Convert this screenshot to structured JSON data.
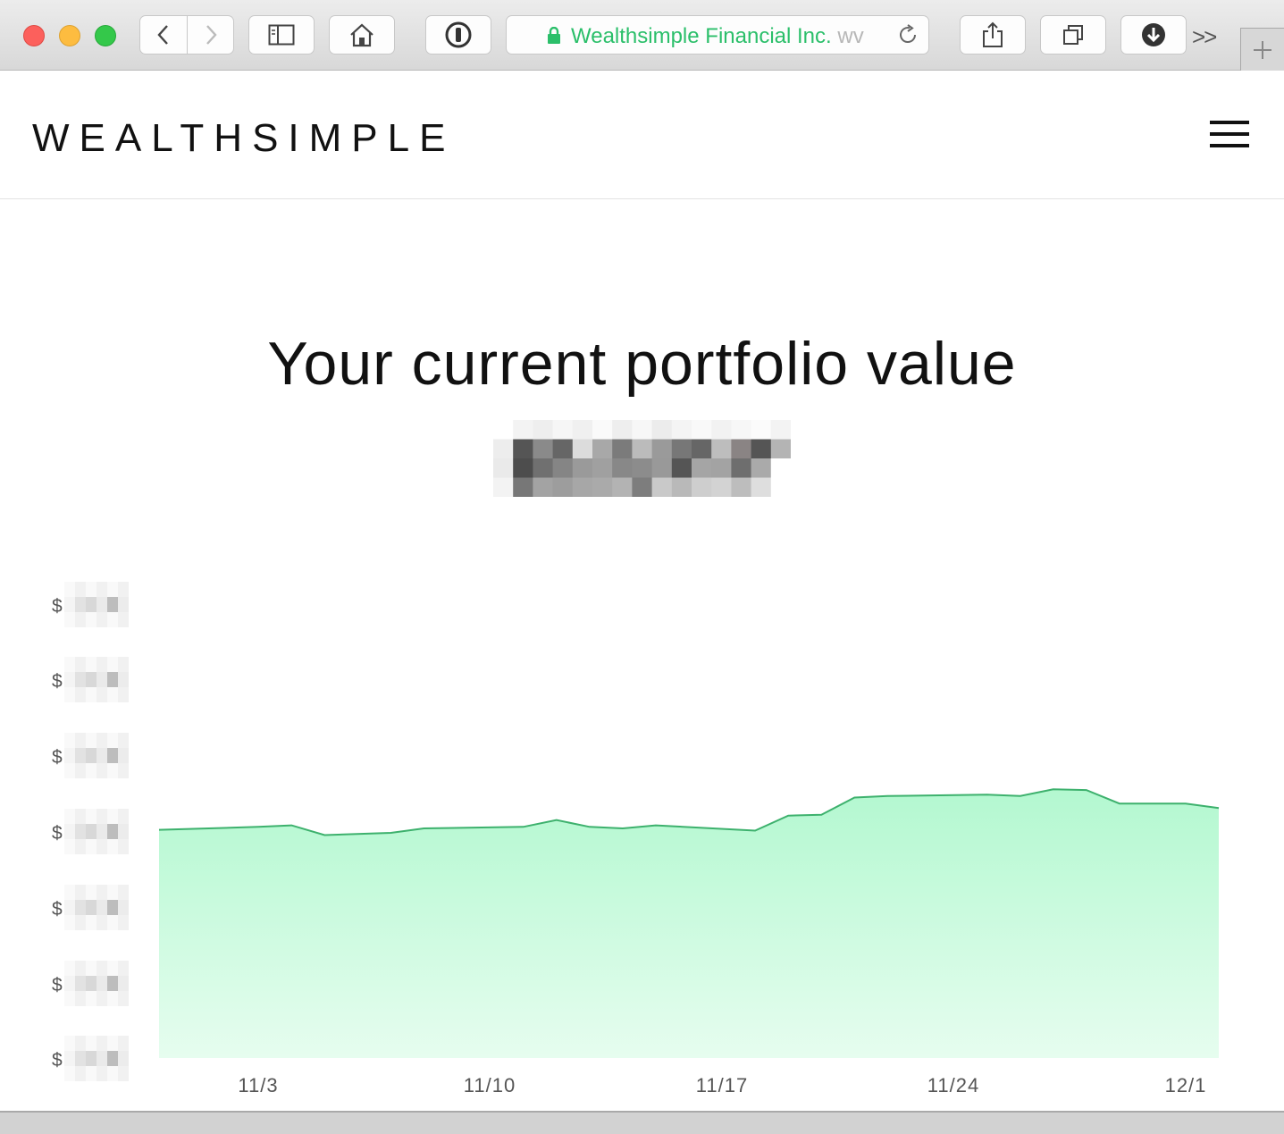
{
  "browser": {
    "url_title": "Wealthsimple Financial Inc.",
    "url_trail": "wv"
  },
  "site": {
    "logo": "WEALTHSIMPLE"
  },
  "main": {
    "headline": "Your current portfolio value"
  },
  "chart_data": {
    "type": "area",
    "title": "",
    "xlabel": "",
    "ylabel": "",
    "x_ticks": [
      "11/3",
      "11/10",
      "11/17",
      "11/24",
      "12/1"
    ],
    "y_ticks": [
      "$",
      "$",
      "$",
      "$",
      "$",
      "$",
      "$"
    ],
    "series": [
      {
        "x": [
          "10/31",
          "11/3",
          "11/4",
          "11/5",
          "11/7",
          "11/8",
          "11/11",
          "11/12",
          "11/13",
          "11/14",
          "11/15",
          "11/18",
          "11/19",
          "11/20",
          "11/21",
          "11/22",
          "11/25",
          "11/26",
          "11/27",
          "11/28",
          "11/29",
          "12/1",
          "12/2"
        ],
        "values": [
          3.04,
          3.08,
          3.1,
          2.97,
          3.0,
          3.06,
          3.08,
          3.17,
          3.08,
          3.06,
          3.1,
          3.03,
          3.23,
          3.24,
          3.47,
          3.49,
          3.51,
          3.49,
          3.58,
          3.57,
          3.39,
          3.39,
          3.33
        ],
        "color": "#3db16d",
        "fill": "#b8f7d4"
      }
    ],
    "ylim": [
      0,
      6
    ],
    "grid": false,
    "legend": "none"
  },
  "colors": {
    "accent": "#2bbf6a",
    "line": "#3db16d",
    "fill_top": "#b3f8d0",
    "fill_bottom": "#e6fdef"
  },
  "icons": [
    "back-icon",
    "forward-icon",
    "sidebar-icon",
    "home-icon",
    "password-icon",
    "lock-icon",
    "reload-icon",
    "share-icon",
    "tabs-icon",
    "download-icon",
    "overflow-icon",
    "plus-icon",
    "menu-icon"
  ]
}
